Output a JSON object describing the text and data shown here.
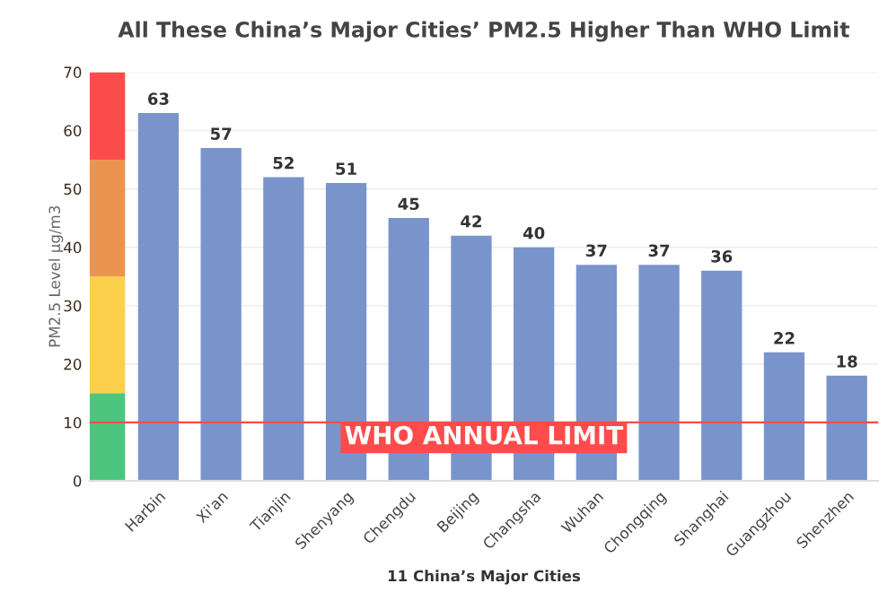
{
  "chart_data": {
    "type": "bar",
    "title": "All These China’s Major Cities’ PM2.5 Higher Than WHO Limit",
    "xlabel": "11 China’s Major Cities",
    "ylabel": "PM2.5 Level μg/m3",
    "categories": [
      "Harbin",
      "Xi'an",
      "Tianjin",
      "Shenyang",
      "Chengdu",
      "Beijing",
      "Changsha",
      "Wuhan",
      "Chongqing",
      "Shanghai",
      "Guangzhou",
      "Shenzhen"
    ],
    "values": [
      63,
      57,
      52,
      51,
      45,
      42,
      40,
      37,
      37,
      36,
      22,
      18
    ],
    "color": "#7894cb",
    "data_labels": true,
    "ylim": [
      0,
      70
    ],
    "yticks": [
      0,
      10,
      20,
      30,
      40,
      50,
      60,
      70
    ],
    "grid": "y",
    "ref_lines": [
      {
        "axis": "y",
        "value": 10,
        "label": "WHO ANNUAL LIMIT",
        "color": "#ff4b4b"
      }
    ],
    "bands": [
      {
        "axis": "y",
        "from": 0,
        "to": 15,
        "color": "#4cc67e"
      },
      {
        "axis": "y",
        "from": 15,
        "to": 35,
        "color": "#fcd04a"
      },
      {
        "axis": "y",
        "from": 35,
        "to": 55,
        "color": "#ea9450"
      },
      {
        "axis": "y",
        "from": 55,
        "to": 70,
        "color": "#fb4c4c"
      }
    ]
  }
}
